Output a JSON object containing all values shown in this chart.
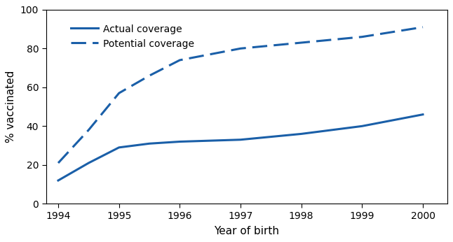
{
  "actual_x": [
    1994,
    1994.5,
    1995,
    1995.5,
    1996,
    1997,
    1998,
    1999,
    2000
  ],
  "actual_y": [
    12,
    21,
    29,
    31,
    32,
    33,
    36,
    40,
    46
  ],
  "potential_x": [
    1994,
    1994.5,
    1995,
    1995.5,
    1996,
    1997,
    1998,
    1999,
    2000
  ],
  "potential_y": [
    21,
    38,
    57,
    66,
    74,
    80,
    83,
    86,
    91
  ],
  "color": "#1a5fa8",
  "xlabel": "Year of birth",
  "ylabel": "% vaccinated",
  "legend_actual": "Actual coverage",
  "legend_potential": "Potential coverage",
  "xlim": [
    1993.8,
    2000.4
  ],
  "ylim": [
    0,
    100
  ],
  "xticks": [
    1994,
    1995,
    1996,
    1997,
    1998,
    1999,
    2000
  ],
  "yticks": [
    0,
    20,
    40,
    60,
    80,
    100
  ],
  "linewidth": 2.2,
  "figsize": [
    6.46,
    3.46
  ],
  "dpi": 100
}
